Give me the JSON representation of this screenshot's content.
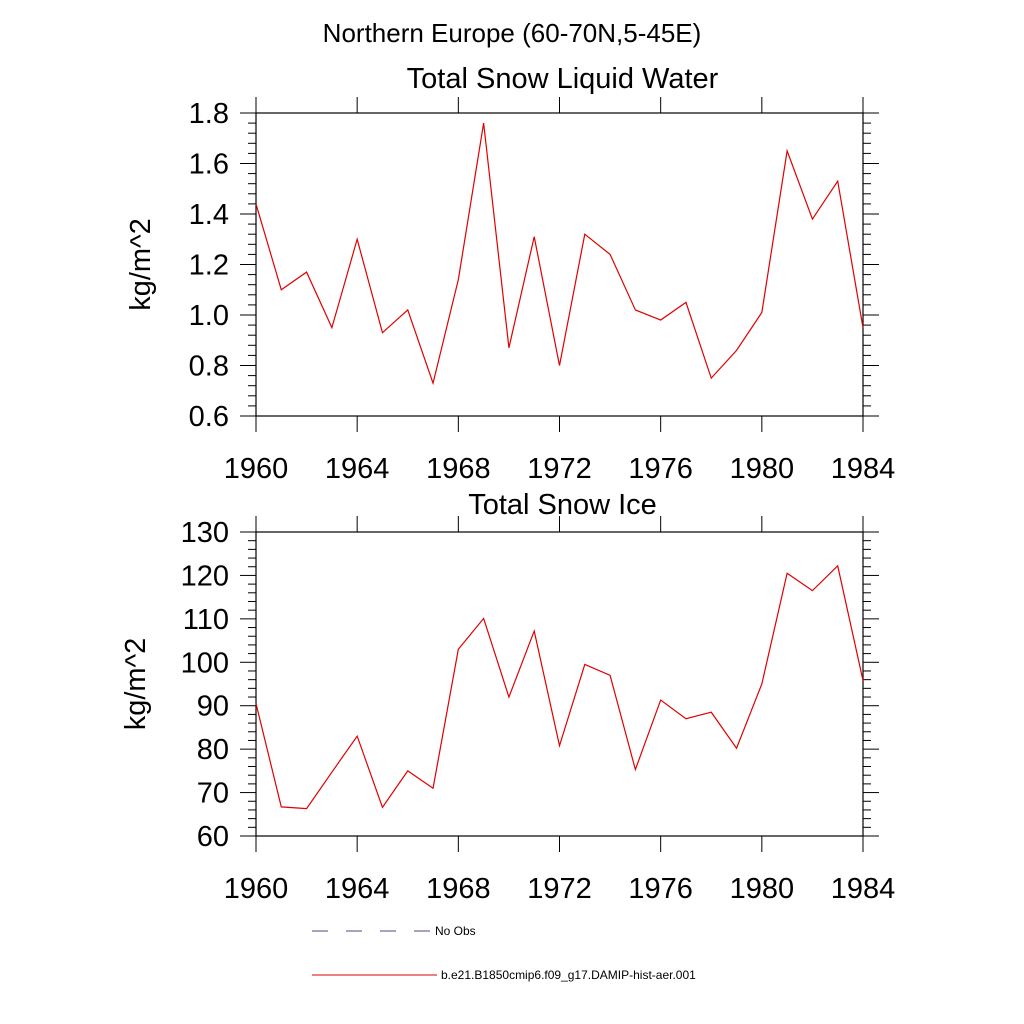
{
  "figure": {
    "suptitle": "Northern Europe (60-70N,5-45E)"
  },
  "colors": {
    "series": "#e00000",
    "no_obs": "#4a4a8a",
    "axis": "#000000"
  },
  "legend": {
    "placement": "bottom-left",
    "items": [
      {
        "label": "No Obs",
        "style": "dashed",
        "color": "#4a4a8a"
      },
      {
        "label": "b.e21.B1850cmip6.f09_g17.DAMIP-hist-aer.001",
        "style": "solid",
        "color": "#e00000"
      }
    ]
  },
  "chart_data": [
    {
      "type": "line",
      "title": "Total Snow Liquid Water",
      "xlabel": "",
      "ylabel": "kg/m^2",
      "xlim": [
        1960,
        1984
      ],
      "ylim": [
        0.6,
        1.8
      ],
      "xticks": [
        1960,
        1964,
        1968,
        1972,
        1976,
        1980,
        1984
      ],
      "xtick_labels": [
        "1960",
        "1964",
        "1968",
        "1972",
        "1976",
        "1980",
        "1984"
      ],
      "yticks": [
        0.6,
        0.8,
        1.0,
        1.2,
        1.4,
        1.6,
        1.8
      ],
      "ytick_labels": [
        "0.6",
        "0.8",
        "1.0",
        "1.2",
        "1.4",
        "1.6",
        "1.8"
      ],
      "grid": false,
      "x": [
        1960,
        1961,
        1962,
        1963,
        1964,
        1965,
        1966,
        1967,
        1968,
        1969,
        1970,
        1971,
        1972,
        1973,
        1974,
        1975,
        1976,
        1977,
        1978,
        1979,
        1980,
        1981,
        1982,
        1983,
        1984
      ],
      "series": [
        {
          "name": "b.e21.B1850cmip6.f09_g17.DAMIP-hist-aer.001",
          "values": [
            1.44,
            1.1,
            1.17,
            0.95,
            1.3,
            0.93,
            1.02,
            0.73,
            1.14,
            1.76,
            0.87,
            1.31,
            0.8,
            1.32,
            1.24,
            1.02,
            0.98,
            1.05,
            0.75,
            0.86,
            1.01,
            1.65,
            1.38,
            1.53,
            0.95
          ]
        }
      ]
    },
    {
      "type": "line",
      "title": "Total Snow Ice",
      "xlabel": "",
      "ylabel": "kg/m^2",
      "xlim": [
        1960,
        1984
      ],
      "ylim": [
        60,
        130
      ],
      "xticks": [
        1960,
        1964,
        1968,
        1972,
        1976,
        1980,
        1984
      ],
      "xtick_labels": [
        "1960",
        "1964",
        "1968",
        "1972",
        "1976",
        "1980",
        "1984"
      ],
      "yticks": [
        60,
        70,
        80,
        90,
        100,
        110,
        120,
        130
      ],
      "ytick_labels": [
        "60",
        "70",
        "80",
        "90",
        "100",
        "110",
        "120",
        "130"
      ],
      "grid": false,
      "x": [
        1960,
        1961,
        1962,
        1963,
        1964,
        1965,
        1966,
        1967,
        1968,
        1969,
        1970,
        1971,
        1972,
        1973,
        1974,
        1975,
        1976,
        1977,
        1978,
        1979,
        1980,
        1981,
        1982,
        1983,
        1984
      ],
      "series": [
        {
          "name": "b.e21.B1850cmip6.f09_g17.DAMIP-hist-aer.001",
          "values": [
            90.5,
            66.7,
            66.3,
            74.7,
            83.0,
            66.6,
            75.0,
            71.0,
            103.0,
            110.1,
            92.0,
            107.2,
            80.8,
            99.5,
            97.0,
            75.3,
            91.3,
            87.0,
            88.5,
            80.2,
            95.0,
            120.5,
            116.5,
            122.2,
            95.8
          ]
        }
      ]
    }
  ]
}
